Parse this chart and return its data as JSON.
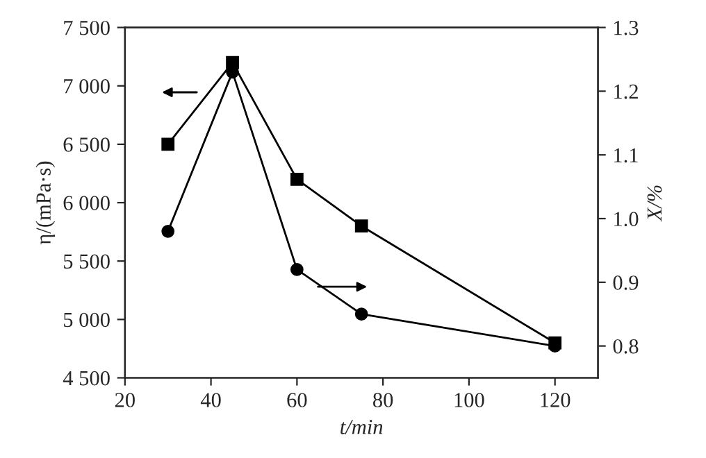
{
  "chart_data": {
    "type": "line",
    "xlabel": "t/min",
    "ylabel": "η/(mPa·s)",
    "y2label": "X/%",
    "x": [
      30,
      45,
      60,
      75,
      120
    ],
    "series": [
      {
        "color": "#000000",
        "marker": "square",
        "values": [
          6500,
          7200,
          6200,
          5800,
          4800
        ]
      },
      {
        "color": "#000000",
        "marker": "circle",
        "axis": "y2",
        "values": [
          0.98,
          1.23,
          0.92,
          0.85,
          0.8
        ]
      }
    ],
    "xlim": [
      20,
      130
    ],
    "xticks": [
      20,
      40,
      60,
      80,
      100,
      120
    ],
    "ylim": [
      4500,
      7500
    ],
    "yticks": [
      {
        "value": 4500,
        "label": "4 500"
      },
      {
        "value": 5000,
        "label": "5 000"
      },
      {
        "value": 5500,
        "label": "5 500"
      },
      {
        "value": 6000,
        "label": "6 000"
      },
      {
        "value": 6500,
        "label": "6 500"
      },
      {
        "value": 7000,
        "label": "7 000"
      },
      {
        "value": 7500,
        "label": "7 500"
      }
    ],
    "y2lim": [
      0.75,
      1.3
    ],
    "y2ticks": [
      {
        "value": 0.8,
        "label": "0.8"
      },
      {
        "value": 0.9,
        "label": "0.9"
      },
      {
        "value": 1.0,
        "label": "1.0"
      },
      {
        "value": 1.1,
        "label": "1.1"
      },
      {
        "value": 1.2,
        "label": "1.2"
      },
      {
        "value": 1.3,
        "label": "1.3"
      }
    ],
    "grid": false,
    "legend": false,
    "line_style": "solid"
  }
}
